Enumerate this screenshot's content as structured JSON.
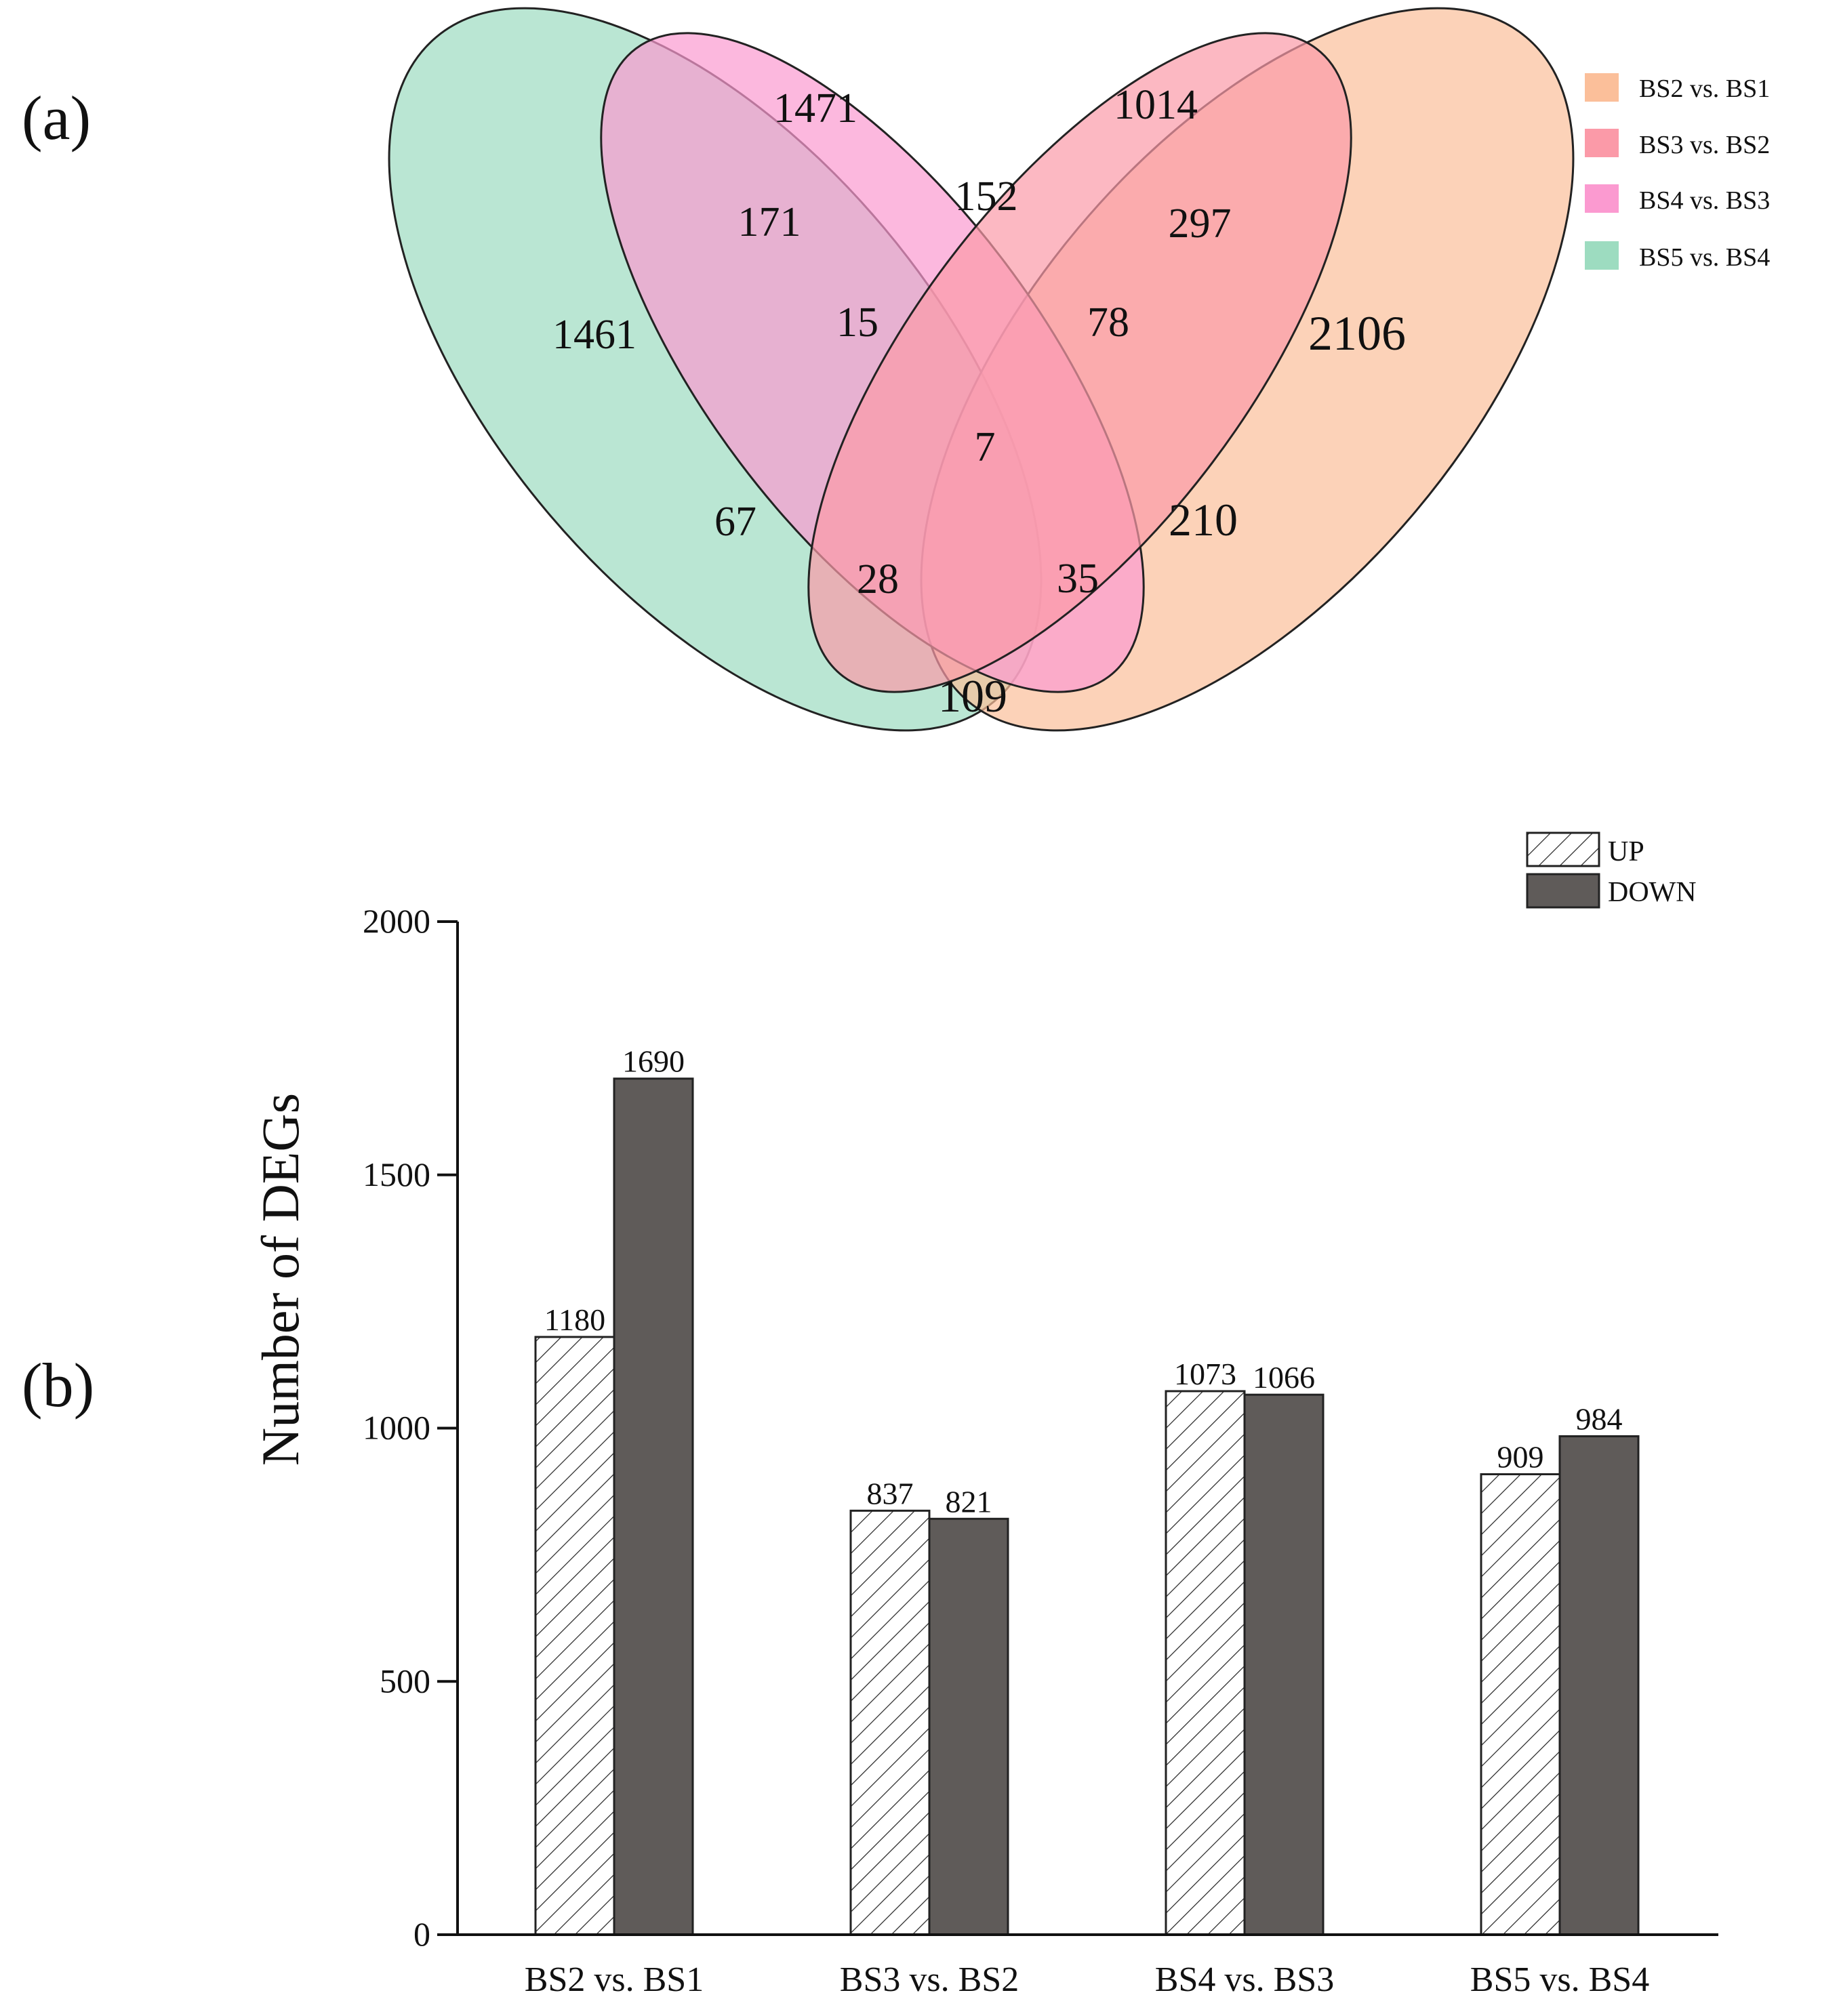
{
  "panels": {
    "a": "(a)",
    "b": "(b)"
  },
  "colors": {
    "bs2_bs1": "#fbbf9a",
    "bs3_bs2": "#fb9aa8",
    "bs4_bs3": "#fb9ad0",
    "bs5_bs4": "#9ddcc0",
    "bar_down": "#5f5b59",
    "bar_up_fill": "#ffffff",
    "outline": "#222222"
  },
  "chart_data": [
    {
      "type": "venn",
      "sets": [
        "BS2 vs. BS1",
        "BS3 vs. BS2",
        "BS4 vs. BS3",
        "BS5 vs. BS4"
      ],
      "legend": [
        "BS2 vs. BS1",
        "BS3 vs. BS2",
        "BS4 vs. BS3",
        "BS5 vs. BS4"
      ],
      "legend_position": "top-right",
      "regions": [
        {
          "sets": [
            "BS4 vs. BS3"
          ],
          "value": 1471
        },
        {
          "sets": [
            "BS3 vs. BS2"
          ],
          "value": 1014
        },
        {
          "sets": [
            "BS5 vs. BS4",
            "BS4 vs. BS3"
          ],
          "value": 171
        },
        {
          "sets": [
            "BS4 vs. BS3",
            "BS3 vs. BS2"
          ],
          "value": 152
        },
        {
          "sets": [
            "BS3 vs. BS2",
            "BS2 vs. BS1"
          ],
          "value": 297
        },
        {
          "sets": [
            "BS5 vs. BS4"
          ],
          "value": 1461
        },
        {
          "sets": [
            "BS5 vs. BS4",
            "BS4 vs. BS3",
            "BS3 vs. BS2"
          ],
          "value": 15
        },
        {
          "sets": [
            "BS4 vs. BS3",
            "BS3 vs. BS2",
            "BS2 vs. BS1"
          ],
          "value": 78
        },
        {
          "sets": [
            "BS2 vs. BS1"
          ],
          "value": 2106
        },
        {
          "sets": [
            "BS5 vs. BS4",
            "BS4 vs. BS3",
            "BS3 vs. BS2",
            "BS2 vs. BS1"
          ],
          "value": 7
        },
        {
          "sets": [
            "BS5 vs. BS4",
            "BS3 vs. BS2"
          ],
          "value": 67
        },
        {
          "sets": [
            "BS4 vs. BS3",
            "BS2 vs. BS1"
          ],
          "value": 210
        },
        {
          "sets": [
            "BS5 vs. BS4",
            "BS3 vs. BS2",
            "BS2 vs. BS1"
          ],
          "value": 28
        },
        {
          "sets": [
            "BS5 vs. BS4",
            "BS4 vs. BS3",
            "BS2 vs. BS1"
          ],
          "value": 35
        },
        {
          "sets": [
            "BS5 vs. BS4",
            "BS2 vs. BS1"
          ],
          "value": 109
        }
      ]
    },
    {
      "type": "bar",
      "categories": [
        "BS2 vs. BS1",
        "BS3 vs. BS2",
        "BS4 vs. BS3",
        "BS5 vs. BS4"
      ],
      "series": [
        {
          "name": "UP",
          "values": [
            1180,
            837,
            1073,
            909
          ]
        },
        {
          "name": "DOWN",
          "values": [
            1690,
            821,
            1066,
            984
          ]
        }
      ],
      "title": "",
      "xlabel": "",
      "ylabel": "Number  of  DEGs",
      "ylim": [
        0,
        2000
      ],
      "yticks": [
        0,
        500,
        1000,
        1500,
        2000
      ],
      "legend": [
        "UP",
        "DOWN"
      ],
      "legend_position": "top-right",
      "grid": false
    }
  ]
}
